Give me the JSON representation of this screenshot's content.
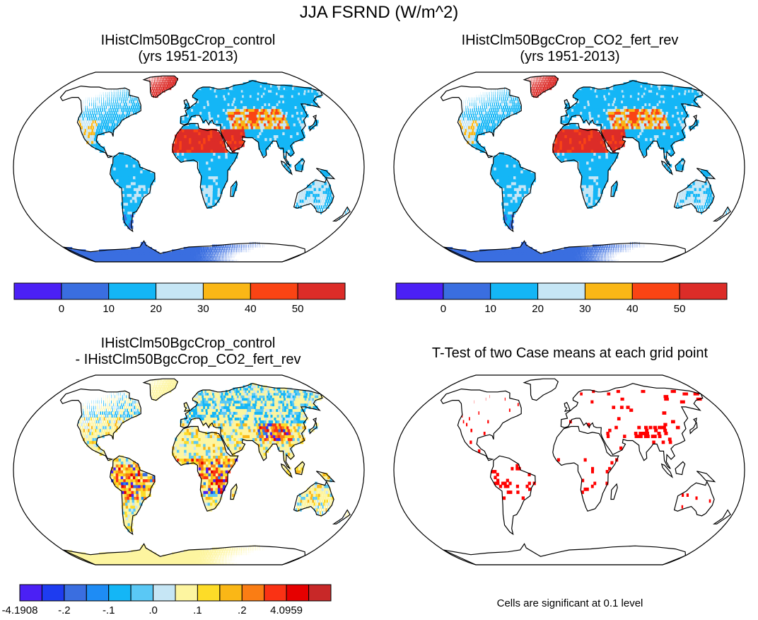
{
  "figure_title": "JJA FSRND (W/m^2)",
  "panels": [
    {
      "id": "control",
      "title_line1": "IHistClm50BgcCrop_control",
      "title_line2": "(yrs 1951-2013)",
      "style": "absolute",
      "colorbar": {
        "colors": [
          "#4b20f5",
          "#3a6ee0",
          "#14b6f6",
          "#c6e6f5",
          "#fab716",
          "#fa4414",
          "#dc2c28"
        ],
        "labels": [
          "0",
          "10",
          "20",
          "30",
          "40",
          "50"
        ]
      }
    },
    {
      "id": "co2-fert-rev",
      "title_line1": "IHistClm50BgcCrop_CO2_fert_rev",
      "title_line2": "(yrs 1951-2013)",
      "style": "absolute",
      "colorbar": {
        "colors": [
          "#4b20f5",
          "#3a6ee0",
          "#14b6f6",
          "#c6e6f5",
          "#fab716",
          "#fa4414",
          "#dc2c28"
        ],
        "labels": [
          "0",
          "10",
          "20",
          "30",
          "40",
          "50"
        ]
      }
    },
    {
      "id": "difference",
      "title_line1": "IHistClm50BgcCrop_control",
      "title_line2": "- IHistClm50BgcCrop_CO2_fert_rev",
      "style": "difference",
      "colorbar": {
        "colors": [
          "#4b20f5",
          "#1e3cf0",
          "#3a6ee0",
          "#1e8cf5",
          "#14b6f6",
          "#5ac8f5",
          "#c6e6f5",
          "#fdf5a0",
          "#fddc28",
          "#fab716",
          "#fa7d14",
          "#fa3214",
          "#e60000",
          "#c82828"
        ],
        "labels": [
          "-4.1908",
          "-.2",
          "-.1",
          ".0",
          ".1",
          ".2",
          "4.0959"
        ]
      }
    },
    {
      "id": "ttest",
      "title_line1": "T-Test of two Case means at each grid point",
      "title_line2": "",
      "style": "significance",
      "significance_color": "#ff0000",
      "footnote": "Cells are significant at 0.1 level"
    }
  ]
}
